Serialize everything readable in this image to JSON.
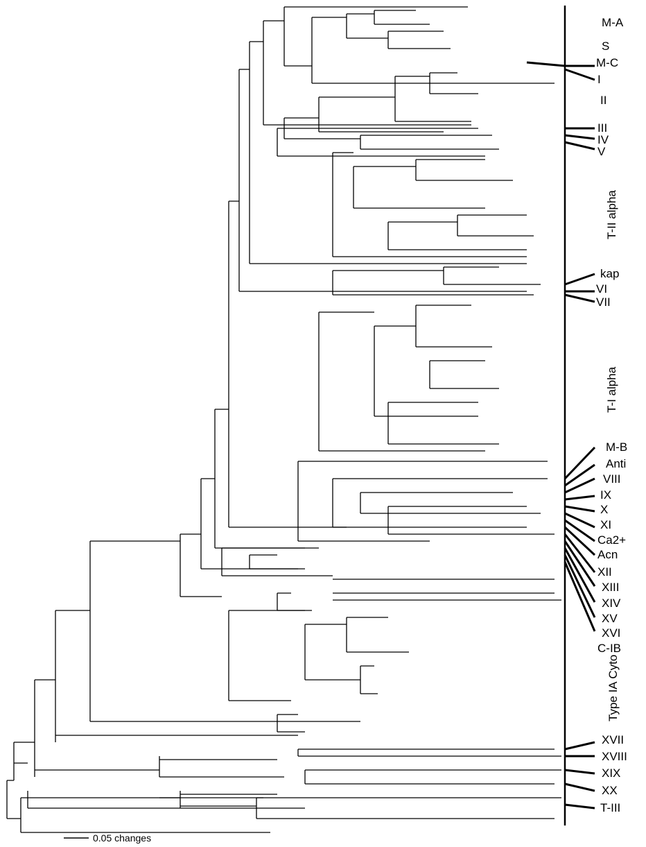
{
  "clade_labels": {
    "m_a": "M-A",
    "s": "S",
    "m_c": "M-C",
    "i": "I",
    "ii": "II",
    "iii": "III",
    "iv": "IV",
    "v": "V",
    "t_ii_alpha": "T-II alpha",
    "kap": "kap",
    "vi": "VI",
    "vii": "VII",
    "t_i_alpha": "T-I alpha",
    "m_b": "M-B",
    "anti": "Anti",
    "viii": "VIII",
    "ix": "IX",
    "x": "X",
    "xi": "XI",
    "ca2": "Ca2+",
    "acn": "Acn",
    "xii": "XII",
    "xiii": "XIII",
    "xiv": "XIV",
    "xv": "XV",
    "xvi": "XVI",
    "c_ib": "C-IB",
    "type_ia_cyto": "Type IA Cyto",
    "xvii": "XVII",
    "xviii": "XVIII",
    "xix": "XIX",
    "xx": "XX",
    "t_iii": "T-III"
  },
  "scale_bar": {
    "label": "0.05 changes"
  },
  "colors": {
    "line": "#000000",
    "background": "#ffffff"
  }
}
